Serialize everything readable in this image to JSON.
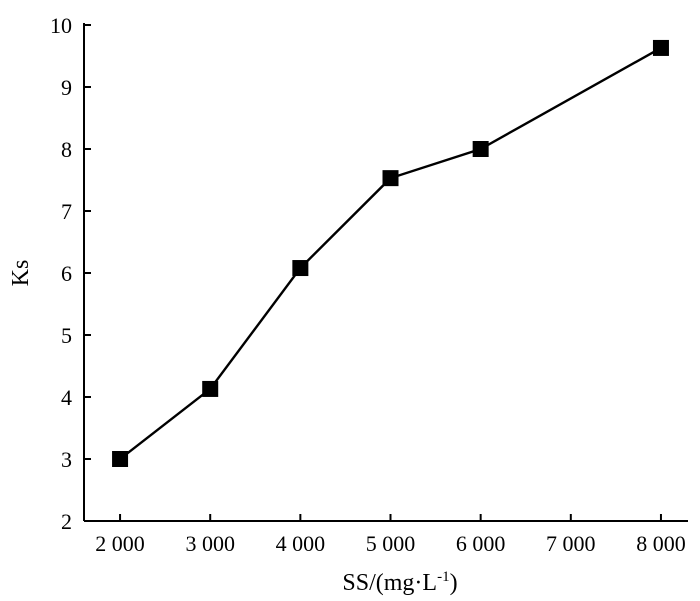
{
  "chart_data": {
    "type": "line",
    "xlabel": "SS/(mg·L",
    "xlabel_sup": "-1",
    "xlabel_end": ")",
    "ylabel": "Ks",
    "xlim": [
      1600,
      8300
    ],
    "ylim": [
      2,
      10
    ],
    "x_ticks": [
      2000,
      3000,
      4000,
      5000,
      6000,
      7000,
      8000
    ],
    "x_tick_labels": [
      "2 000",
      "3 000",
      "4 000",
      "5 000",
      "6 000",
      "7 000",
      "8 000"
    ],
    "y_ticks": [
      2,
      3,
      4,
      5,
      6,
      7,
      8,
      9,
      10
    ],
    "y_tick_labels": [
      "2",
      "3",
      "4",
      "5",
      "6",
      "7",
      "8",
      "9",
      "10"
    ],
    "series": [
      {
        "marker": "square",
        "color": "#000000",
        "x": [
          2000,
          3000,
          4000,
          5000,
          6000,
          8000
        ],
        "y": [
          3.0,
          4.13,
          6.08,
          7.53,
          8.0,
          9.63
        ]
      }
    ],
    "grid": false
  }
}
